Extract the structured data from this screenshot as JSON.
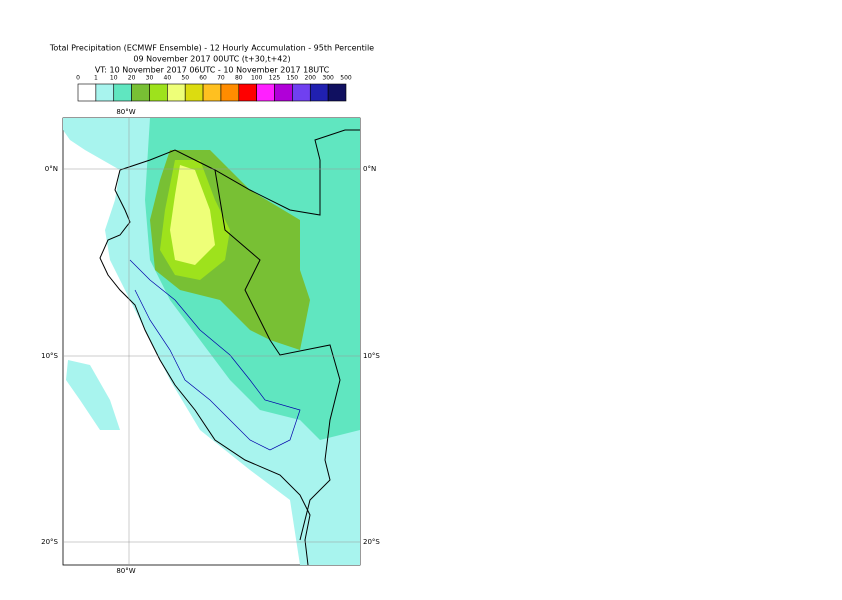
{
  "header": {
    "title": "Total Precipitation (ECMWF Ensemble) - 12 Hourly Accumulation - 95th Percentile",
    "subtitle": "09 November 2017 00UTC (t+30,t+42)",
    "valid_time": "VT: 10 November 2017 06UTC - 10 November 2017 18UTC"
  },
  "colorbar": {
    "labels": [
      "0",
      "1",
      "10",
      "20",
      "30",
      "40",
      "50",
      "60",
      "70",
      "80",
      "100",
      "125",
      "150",
      "200",
      "300",
      "500"
    ],
    "colors": [
      "#ffffff",
      "#a8f4ee",
      "#60e6c0",
      "#78c034",
      "#9ee21c",
      "#eeff78",
      "#dcdc10",
      "#ffc020",
      "#ff8c00",
      "#ff0000",
      "#ff20ff",
      "#b000d8",
      "#7040f0",
      "#2020b0",
      "#101060"
    ]
  },
  "map": {
    "lon_label_top": "80°W",
    "lon_label_bottom": "80°W",
    "lat_labels_left": [
      "0°N",
      "10°S",
      "20°S"
    ],
    "lat_labels_right": [
      "0°N",
      "10°S",
      "20°S"
    ]
  }
}
